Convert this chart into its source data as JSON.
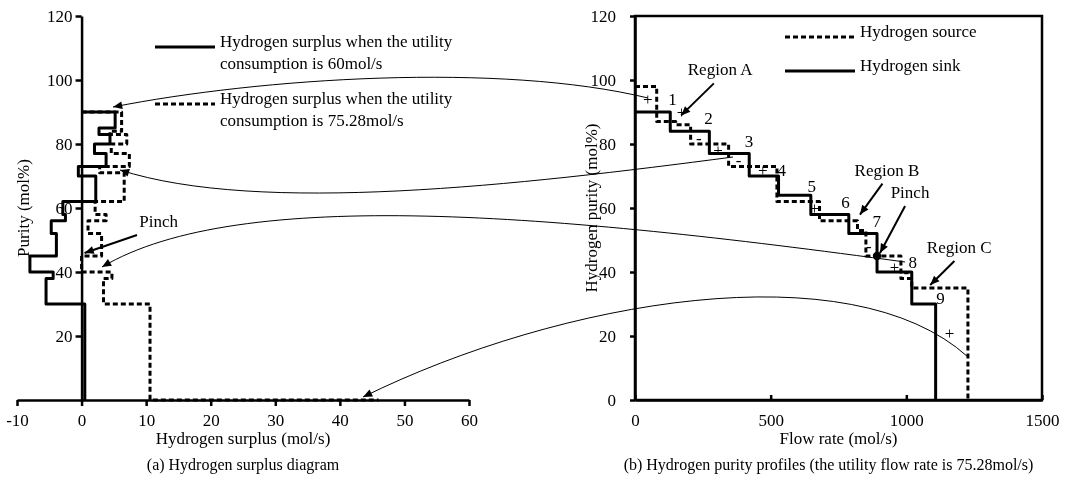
{
  "chart_data": [
    {
      "type": "line",
      "title": "(a) Hydrogen surplus diagram",
      "xlabel": "Hydrogen surplus (mol/s)",
      "ylabel": "Purity (mol%)",
      "xlim": [
        -10,
        60
      ],
      "xticks": [
        -10,
        0,
        10,
        20,
        30,
        40,
        50,
        60
      ],
      "ylim": [
        0,
        120
      ],
      "yticks": [
        20,
        40,
        60,
        80,
        100,
        120
      ],
      "legend": "top right",
      "annotations": [
        {
          "text": "Pinch",
          "x": 0,
          "y": 45
        }
      ],
      "series": [
        {
          "name": "Hydrogen surplus when the utility consumption is 60mol/s",
          "color": "#000000",
          "line_style": "solid",
          "x": [
            0,
            5.2,
            5.2,
            2.7,
            2.7,
            4.4,
            4.4,
            2,
            2,
            3.8,
            3.8,
            -0.5,
            -0.5,
            2.2,
            2.2,
            -2.9,
            -2.9,
            -2.5,
            -2.5,
            -4.7,
            -4.7,
            -3.9,
            -3.9,
            -8,
            -8,
            -4.4,
            -4.4,
            -5.5,
            -5.5,
            0.5,
            0.5
          ],
          "values": [
            90,
            90,
            85,
            85,
            83,
            83,
            80,
            80,
            77,
            77,
            73,
            73,
            70,
            70,
            62,
            62,
            58,
            58,
            56,
            56,
            52,
            52,
            45,
            45,
            40,
            40,
            38,
            38,
            30,
            30,
            0
          ]
        },
        {
          "name": "Hydrogen surplus when the utility consumption is 75.28mol/s",
          "color": "#000000",
          "line_style": "dashed",
          "x": [
            0,
            6.2,
            6.2,
            4.4,
            4.4,
            7,
            7,
            4.6,
            4.6,
            7.4,
            7.4,
            2.8,
            2.8,
            6.6,
            6.6,
            2.1,
            2.1,
            3.8,
            3.8,
            1,
            1,
            3.1,
            3.1,
            0,
            0,
            4.7,
            4.7,
            3.4,
            3.4,
            10.6,
            10.6,
            46
          ],
          "values": [
            90,
            90,
            84,
            84,
            83,
            83,
            80,
            80,
            77,
            77,
            73,
            73,
            71,
            71,
            62,
            62,
            58,
            58,
            56,
            56,
            52,
            52,
            45,
            45,
            40,
            40,
            38,
            38,
            30,
            30,
            0,
            0
          ]
        }
      ]
    },
    {
      "type": "step",
      "title": "(b) Hydrogen purity profiles (the utility flow rate is 75.28mol/s)",
      "xlabel": "Flow rate (mol/s)",
      "ylabel": "Hydrogen purity (mol%)",
      "xlim": [
        0,
        1500
      ],
      "xticks": [
        0,
        500,
        1000,
        1500
      ],
      "ylim": [
        0,
        120
      ],
      "yticks": [
        0,
        20,
        40,
        60,
        80,
        100,
        120
      ],
      "legend": "top right",
      "annotations": [
        {
          "text": "Region A",
          "x": 159,
          "y": 88
        },
        {
          "text": "Region B",
          "x": 818,
          "y": 57
        },
        {
          "text": "Pinch",
          "x": 892,
          "y": 45
        },
        {
          "text": "Region C",
          "x": 1077,
          "y": 35
        },
        "1",
        "2",
        "3",
        "4",
        "5",
        "6",
        "7",
        "8",
        "9",
        "+",
        "+",
        "+",
        "+",
        "+",
        "+",
        "+",
        "-",
        "-",
        "-",
        "-"
      ],
      "series": [
        {
          "name": "Hydrogen source",
          "color": "#000000",
          "line_style": "dashed",
          "x": [
            0,
            80,
            150,
            205,
            345,
            523,
            680,
            820,
            851,
            980,
            1020,
            1227
          ],
          "values": [
            98,
            87,
            86,
            80,
            73,
            62,
            56,
            53,
            45,
            38,
            35,
            0
          ]
        },
        {
          "name": "Hydrogen sink",
          "color": "#000000",
          "line_style": "solid",
          "x": [
            0,
            130,
            274,
            421,
            529,
            648,
            788,
            892,
            1020,
            1108
          ],
          "values": [
            90,
            84,
            77,
            70,
            64,
            58,
            52,
            40,
            30,
            0
          ]
        },
        {
          "type": "scatter",
          "color": "#000000",
          "x": [
            892
          ],
          "values": [
            45
          ]
        }
      ]
    }
  ]
}
